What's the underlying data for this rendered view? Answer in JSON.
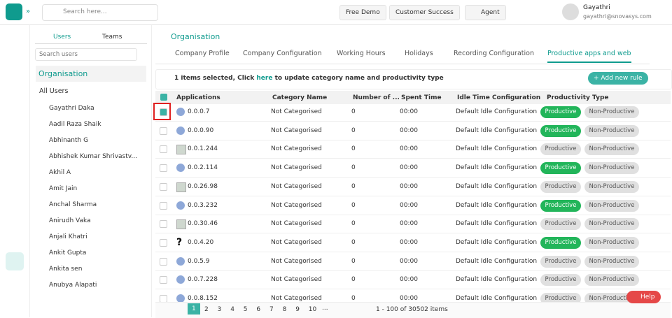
{
  "topbar": {
    "search": "Search here...",
    "buttons": [
      "Free Demo",
      "Customer Success",
      "Agent"
    ],
    "user_name": "Gayathri",
    "user_email": "gayathri@snovasys.com"
  },
  "sidebar": {
    "tabs": [
      "Users",
      "Teams"
    ],
    "search": "Search users",
    "heading": "Organisation",
    "all_users": "All Users",
    "users": [
      "Gayathri Daka",
      "Aadil Raza Shaik",
      "Abhinanth G",
      "Abhishek Kumar Shrivastv...",
      "Akhil A",
      "Amit Jain",
      "Anchal Sharma",
      "Anirudh Vaka",
      "Anjali Khatri",
      "Ankit Gupta",
      "Ankita sen",
      "Anubya Alapati"
    ]
  },
  "main": {
    "title": "Organisation",
    "tabs": [
      "Company Profile",
      "Company Configuration",
      "Working Hours",
      "Holidays",
      "Recording Configuration",
      "Productive apps and web"
    ],
    "active_tab": 5,
    "banner": {
      "prefix": "1 items selected, Click",
      "link": "here",
      "suffix": "to update category name and productivity type",
      "button": "+ Add new rule"
    },
    "table": {
      "headers": [
        "Applications",
        "Category Name",
        "Number of ...",
        "Spent Time",
        "Idle Time Configuration",
        "Productivity Type"
      ],
      "rows": [
        {
          "app": "0.0.0.7",
          "icon": "globe",
          "checked": true,
          "category": "Not Categorised",
          "number": "0",
          "spent": "00:00",
          "idle": "Default Idle Configuration",
          "productive": "Productive",
          "non_productive": "Non-Productive",
          "active": "productive"
        },
        {
          "app": "0.0.0.90",
          "icon": "globe",
          "checked": false,
          "category": "Not Categorised",
          "number": "0",
          "spent": "00:00",
          "idle": "Default Idle Configuration",
          "productive": "Productive",
          "non_productive": "Non-Productive",
          "active": "productive"
        },
        {
          "app": "0.0.1.244",
          "icon": "broken",
          "checked": false,
          "category": "Not Categorised",
          "number": "0",
          "spent": "00:00",
          "idle": "Default Idle Configuration",
          "productive": "Productive",
          "non_productive": "Non-Productive",
          "active": "none"
        },
        {
          "app": "0.0.2.114",
          "icon": "globe",
          "checked": false,
          "category": "Not Categorised",
          "number": "0",
          "spent": "00:00",
          "idle": "Default Idle Configuration",
          "productive": "Productive",
          "non_productive": "Non-Productive",
          "active": "productive"
        },
        {
          "app": "0.0.26.98",
          "icon": "broken",
          "checked": false,
          "category": "Not Categorised",
          "number": "0",
          "spent": "00:00",
          "idle": "Default Idle Configuration",
          "productive": "Productive",
          "non_productive": "Non-Productive",
          "active": "none"
        },
        {
          "app": "0.0.3.232",
          "icon": "globe",
          "checked": false,
          "category": "Not Categorised",
          "number": "0",
          "spent": "00:00",
          "idle": "Default Idle Configuration",
          "productive": "Productive",
          "non_productive": "Non-Productive",
          "active": "productive"
        },
        {
          "app": "0.0.30.46",
          "icon": "broken",
          "checked": false,
          "category": "Not Categorised",
          "number": "0",
          "spent": "00:00",
          "idle": "Default Idle Configuration",
          "productive": "Productive",
          "non_productive": "Non-Productive",
          "active": "none"
        },
        {
          "app": "0.0.4.20",
          "icon": "question",
          "checked": false,
          "category": "Not Categorised",
          "number": "0",
          "spent": "00:00",
          "idle": "Default Idle Configuration",
          "productive": "Productive",
          "non_productive": "Non-Productive",
          "active": "productive"
        },
        {
          "app": "0.0.5.9",
          "icon": "globe",
          "checked": false,
          "category": "Not Categorised",
          "number": "0",
          "spent": "00:00",
          "idle": "Default Idle Configuration",
          "productive": "Productive",
          "non_productive": "Non-Productive",
          "active": "none"
        },
        {
          "app": "0.0.7.228",
          "icon": "globe",
          "checked": false,
          "category": "Not Categorised",
          "number": "0",
          "spent": "00:00",
          "idle": "Default Idle Configuration",
          "productive": "Productive",
          "non_productive": "Non-Productive",
          "active": "none"
        },
        {
          "app": "0.0.8.152",
          "icon": "globe",
          "checked": false,
          "category": "Not Categorised",
          "number": "0",
          "spent": "00:00",
          "idle": "Default Idle Configuration",
          "productive": "Productive",
          "non_productive": "Non-Productive",
          "active": "none"
        }
      ]
    },
    "pagination": {
      "pages": [
        "1",
        "2",
        "3",
        "4",
        "5",
        "6",
        "7",
        "8",
        "9",
        "10"
      ],
      "more": "...",
      "summary": "1 - 100 of 30502 items"
    },
    "help": "Help"
  }
}
